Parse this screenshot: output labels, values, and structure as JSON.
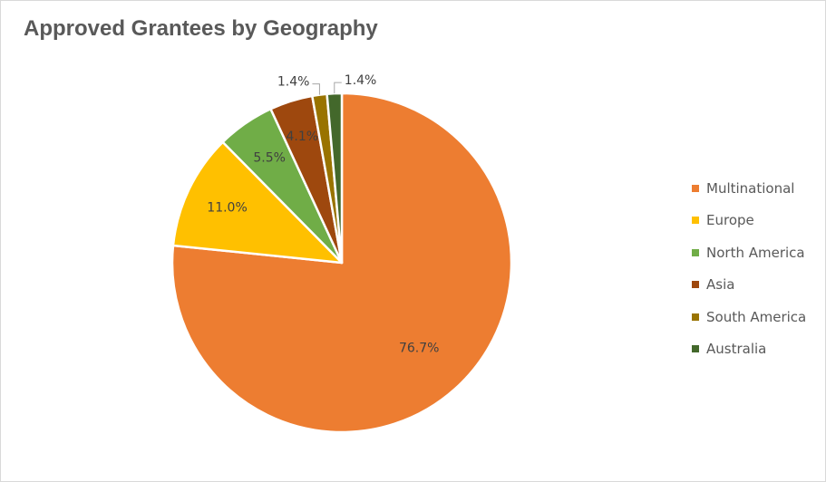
{
  "chart_data": {
    "type": "pie",
    "title": "Approved Grantees by Geography",
    "categories": [
      "Multinational",
      "Europe",
      "North America",
      "Asia",
      "South America",
      "Australia"
    ],
    "values": [
      76.7,
      11.0,
      5.5,
      4.1,
      1.4,
      1.4
    ],
    "data_labels": [
      "76.7%",
      "11.0%",
      "5.5%",
      "4.1%",
      "1.4%",
      "1.4%"
    ],
    "colors": [
      "#ED7D31",
      "#FFC000",
      "#70AD47",
      "#9E480E",
      "#997300",
      "#43682B"
    ],
    "legend_position": "right"
  }
}
